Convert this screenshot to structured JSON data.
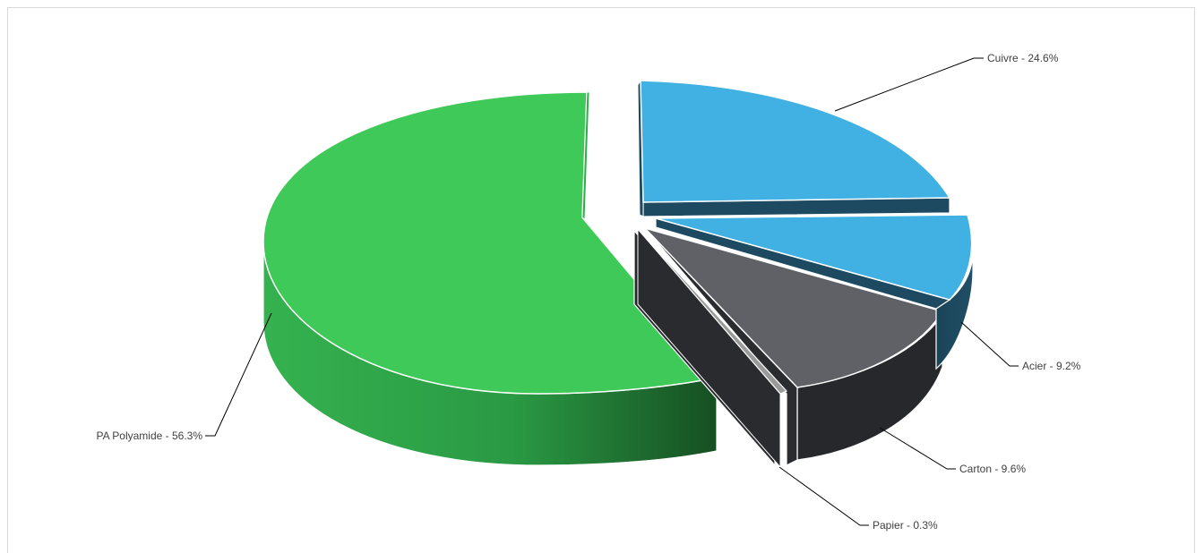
{
  "chart_data": {
    "type": "pie",
    "three_d": true,
    "exploded": true,
    "title": "",
    "slices": [
      {
        "label": "Cuivre - 24.6%",
        "name": "Cuivre",
        "value": 24.6,
        "color": "#41b0e2",
        "side_color": "#1d4a60"
      },
      {
        "label": "Acier - 9.2%",
        "name": "Acier",
        "value": 9.2,
        "color": "#41b0e2",
        "side_color": "#1d4a60"
      },
      {
        "label": "Carton - 9.6%",
        "name": "Carton",
        "value": 9.6,
        "color": "#606166",
        "side_color": "#2a2b2e"
      },
      {
        "label": "Papier - 0.3%",
        "name": "Papier",
        "value": 0.3,
        "color": "#9a9a9a",
        "side_color": "#2a2b2e"
      },
      {
        "label": "PA Polyamide - 56.3%",
        "name": "PA Polyamide",
        "value": 56.3,
        "color": "#3ec958",
        "side_color": "#1e7a34"
      }
    ],
    "legend": "none",
    "data_labels": "outside-with-leader-lines"
  }
}
